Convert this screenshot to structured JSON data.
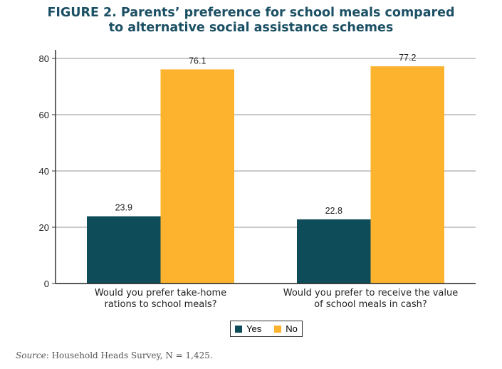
{
  "chart_data": {
    "type": "bar",
    "title": [
      "FIGURE 2. Parents’ preference for school meals compared",
      "to alternative social assistance schemes"
    ],
    "categories": [
      [
        "Would you prefer take-home",
        "rations to school meals?"
      ],
      [
        "Would you prefer to receive the value",
        "of school meals in cash?"
      ]
    ],
    "series": [
      {
        "name": "Yes",
        "color": "#0e4c5a",
        "values": [
          23.9,
          22.8
        ]
      },
      {
        "name": "No",
        "color": "#fdb32e",
        "values": [
          76.1,
          77.2
        ]
      }
    ],
    "yticks": [
      0,
      20,
      40,
      60,
      80
    ],
    "ylim": [
      0,
      80
    ],
    "grid": true,
    "legend": "bottom-center",
    "xlabel": "",
    "ylabel": ""
  },
  "source": {
    "label": "Source",
    "text": ": Household Heads Survey, N = 1,425."
  }
}
